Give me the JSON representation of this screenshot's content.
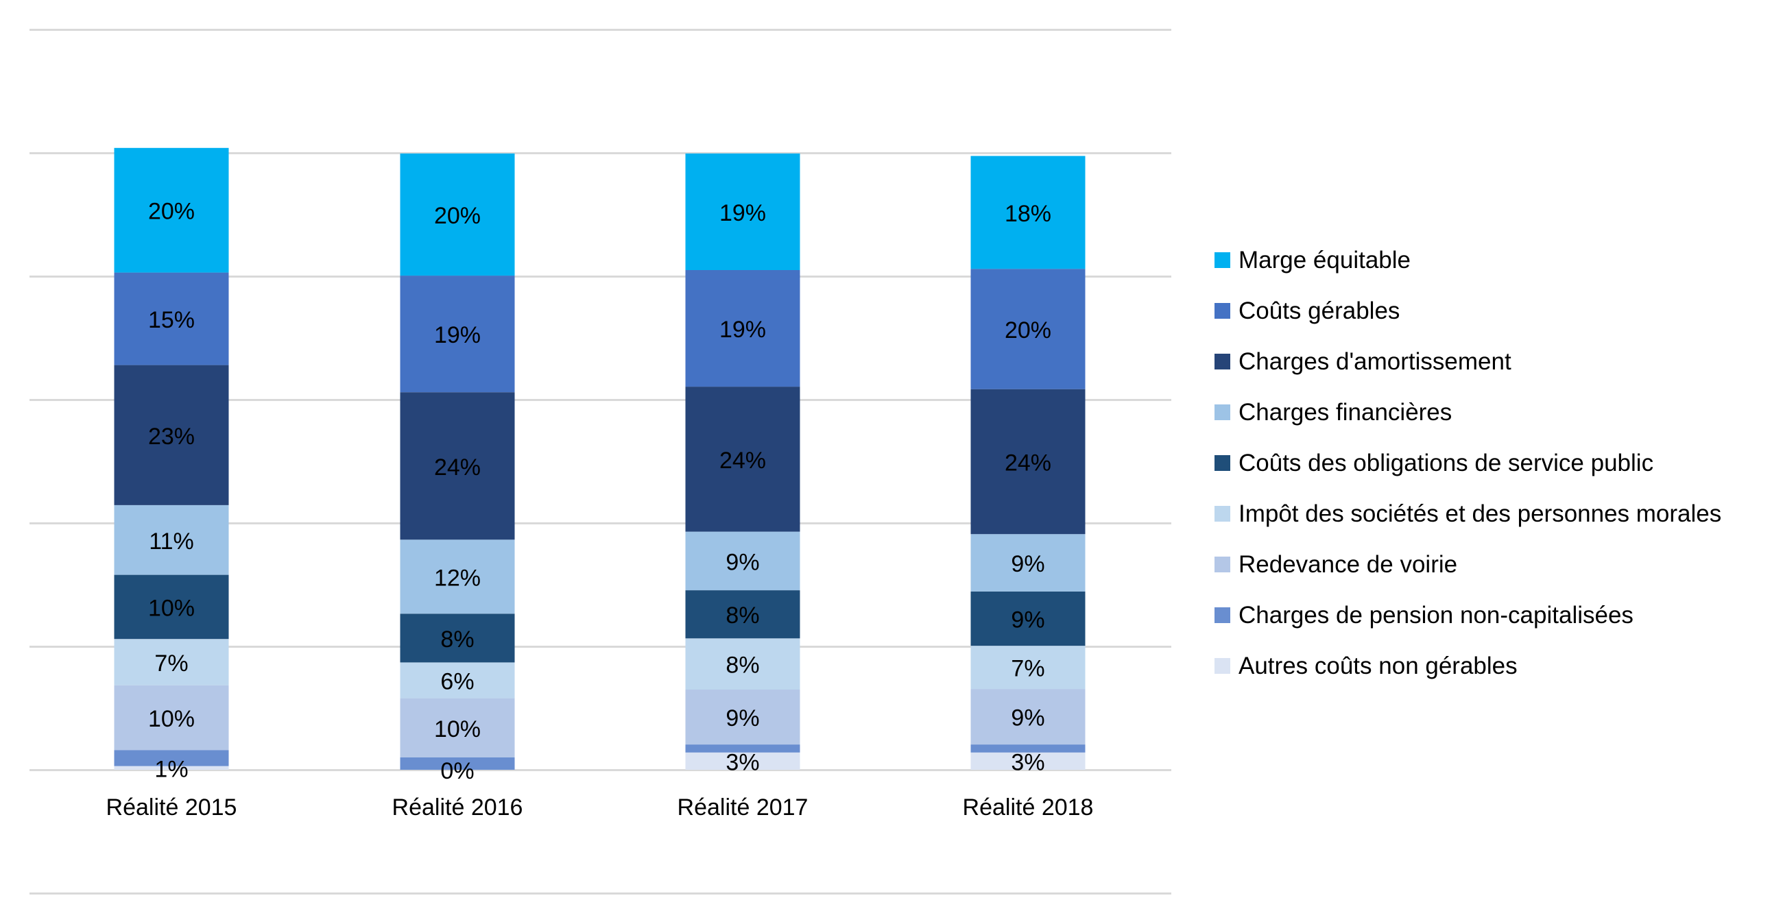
{
  "chart_data": {
    "type": "bar",
    "stacked": true,
    "title": "",
    "xlabel": "",
    "ylabel": "",
    "ylim": [
      -20,
      120
    ],
    "ytick_step": 20,
    "grid": true,
    "legend_position": "right",
    "categories": [
      "Réalité 2015",
      "Réalité 2016",
      "Réalité 2017",
      "Réalité 2018"
    ],
    "series": [
      {
        "name": "Autres coûts non gérables",
        "color": "#DAE3F3",
        "values": [
          0.6,
          0.0,
          2.8,
          2.8
        ],
        "labels": [
          "1%",
          "0%",
          "3%",
          "3%"
        ]
      },
      {
        "name": "Charges de pension non-capitalisées",
        "color": "#698ED0",
        "values": [
          2.6,
          2.0,
          1.3,
          1.3
        ],
        "labels": [
          "",
          "",
          "",
          ""
        ]
      },
      {
        "name": "Redevance de voirie",
        "color": "#B4C7E7",
        "values": [
          10.5,
          9.6,
          8.9,
          9.0
        ],
        "labels": [
          "10%",
          "10%",
          "9%",
          "9%"
        ]
      },
      {
        "name": "Impôt des sociétés et des personnes morales",
        "color": "#BDD7EE",
        "values": [
          7.5,
          5.8,
          8.3,
          7.0
        ],
        "labels": [
          "7%",
          "6%",
          "8%",
          "7%"
        ]
      },
      {
        "name": "Coûts des obligations de service public",
        "color": "#1F4E79",
        "values": [
          10.4,
          7.9,
          7.8,
          8.8
        ],
        "labels": [
          "10%",
          "8%",
          "8%",
          "9%"
        ]
      },
      {
        "name": "Charges financières",
        "color": "#9DC3E6",
        "values": [
          11.3,
          12.0,
          9.5,
          9.3
        ],
        "labels": [
          "11%",
          "12%",
          "9%",
          "9%"
        ]
      },
      {
        "name": "Charges d'amortissement",
        "color": "#264478",
        "values": [
          22.7,
          23.9,
          23.5,
          23.5
        ],
        "labels": [
          "23%",
          "24%",
          "24%",
          "24%"
        ]
      },
      {
        "name": "Coûts gérables",
        "color": "#4472C4",
        "values": [
          15.0,
          18.9,
          18.9,
          19.5
        ],
        "labels": [
          "15%",
          "19%",
          "19%",
          "20%"
        ]
      },
      {
        "name": "Marge équitable",
        "color": "#00B0F0",
        "values": [
          20.2,
          19.8,
          18.9,
          18.3
        ],
        "labels": [
          "20%",
          "20%",
          "19%",
          "18%"
        ]
      }
    ],
    "legend_order": [
      "Marge équitable",
      "Coûts gérables",
      "Charges d'amortissement",
      "Charges financières",
      "Coûts des obligations de service public",
      "Impôt des sociétés et des personnes morales",
      "Redevance de voirie",
      "Charges de pension non-capitalisées",
      "Autres coûts non gérables"
    ]
  }
}
